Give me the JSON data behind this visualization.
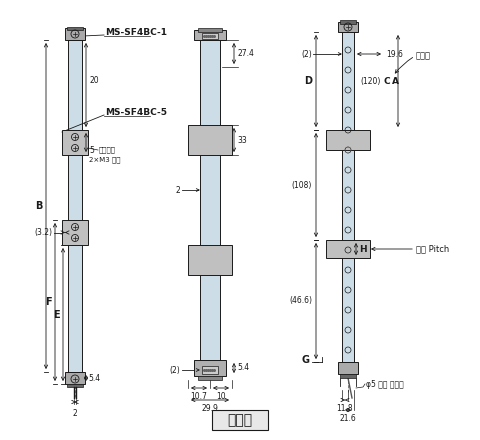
{
  "title": "투광기",
  "bg_color": "#ffffff",
  "fig_width": 4.8,
  "fig_height": 4.4,
  "dpi": 100,
  "light_blue": "#ccdde8",
  "gray_bracket": "#c0c0c0",
  "gray_cap": "#999999",
  "line_color": "#1a1a1a",
  "label_ms_sf4bc_1": "MS-SF4BC-1",
  "label_ms_sf4bc_5": "MS-SF4BC-5",
  "label_screw": "접시나사",
  "label_screw2": "2×M3 구멍",
  "label_B": "B",
  "label_F": "F",
  "label_E": "E",
  "label_D": "D",
  "label_G": "G",
  "label_H": "H",
  "label_C": "C",
  "label_A": "A",
  "label_27_4": "27.4",
  "label_33": "33",
  "label_2a": "2",
  "label_2b": "(2)",
  "label_20": "20",
  "label_5": "5",
  "label_3_2": "(3.2)",
  "label_5_4a": "5.4",
  "label_5_4b": "5.4",
  "label_2c": "2",
  "label_10_7": "10.7",
  "label_10": "10",
  "label_29_9": "29.9",
  "label_2d": "(2)",
  "label_19_6": "19.6",
  "label_120": "(120)",
  "label_108": "(108)",
  "label_46_6": "(46.6)",
  "label_11_8": "11.8",
  "label_21_6": "21.6",
  "label_detect": "검출폭",
  "label_pitch": "광축 Pitch",
  "label_cable": "φ5 회색 케이블"
}
